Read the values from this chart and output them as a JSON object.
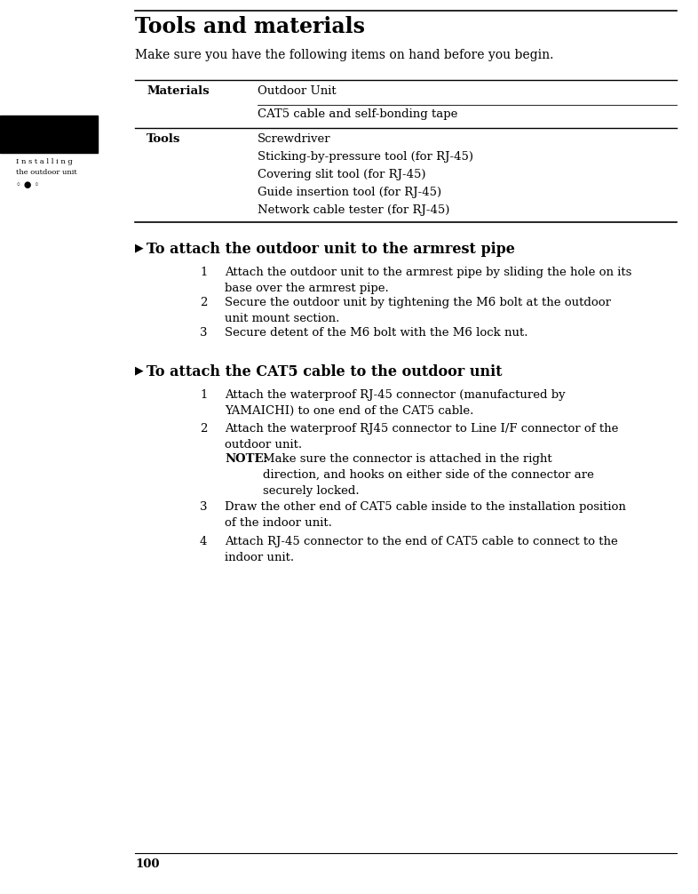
{
  "bg_color": "#ffffff",
  "title": "Tools and materials",
  "subtitle": "Make sure you have the following items on hand before you begin.",
  "sidebar_line1": "I n s t a l l i n g",
  "sidebar_line2": "the outdoor unit",
  "sidebar_bullets": "◦ ● ◦",
  "page_number": "100",
  "section1_heading": "To attach the outdoor unit to the armrest pipe",
  "section1_steps": [
    "Attach the outdoor unit to the armrest pipe by sliding the hole on its\nbase over the armrest pipe.",
    "Secure the outdoor unit by tightening the M6 bolt at the outdoor\nunit mount section.",
    "Secure detent of the M6 bolt with the M6 lock nut."
  ],
  "section2_heading": "To attach the CAT5 cable to the outdoor unit",
  "section2_steps": [
    "Attach the waterproof RJ-45 connector (manufactured by\nYAMAICHI) to one end of the CAT5 cable.",
    "Attach the waterproof RJ45 connector to Line I/F connector of the\noutdoor unit.",
    "Draw the other end of CAT5 cable inside to the installation position\nof the indoor unit.",
    "Attach RJ-45 connector to the end of CAT5 cable to connect to the\nindoor unit."
  ],
  "note_label": "NOTE:",
  "note_text": "Make sure the connector is attached in the right\ndirection, and hooks on either side of the connector are\nsecurely locked.",
  "materials_items": [
    "Outdoor Unit",
    "CAT5 cable and self-bonding tape"
  ],
  "tools_items": [
    "Screwdriver",
    "Sticking-by-pressure tool (for RJ-45)",
    "Covering slit tool (for RJ-45)",
    "Guide insertion tool (for RJ-45)",
    "Network cable tester (for RJ-45)"
  ]
}
